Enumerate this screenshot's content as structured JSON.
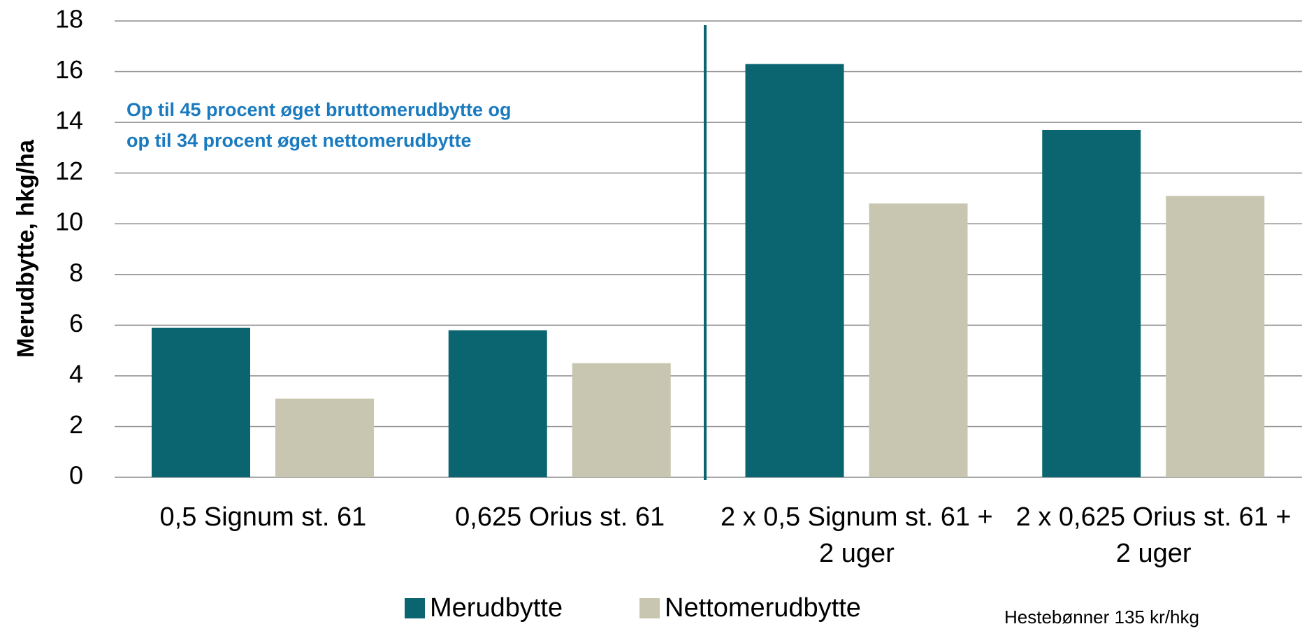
{
  "chart_data": {
    "type": "bar",
    "ylabel": "Merudbytte, hkg/ha",
    "categories": [
      "0,5 Signum st. 61",
      "0,625 Orius st. 61",
      "2 x 0,5 Signum st. 61 + 2 uger",
      "2 x 0,625 Orius st. 61 + 2 uger"
    ],
    "series": [
      {
        "name": "Merudbytte",
        "color": "#0b6571",
        "values": [
          5.9,
          5.8,
          16.3,
          13.7
        ]
      },
      {
        "name": "Nettomerudbytte",
        "color": "#c8c6b0",
        "values": [
          3.1,
          4.5,
          10.8,
          11.1
        ]
      }
    ],
    "ylim": [
      0,
      18
    ],
    "yticks": [
      0,
      2,
      4,
      6,
      8,
      10,
      12,
      14,
      16,
      18
    ],
    "grid": true,
    "annotations": [
      "Op til 45 procent øget bruttomerudbytte og",
      "op til 34 procent øget nettomerudbytte"
    ],
    "note": "Hestebønner 135 kr/hkg",
    "legend": "bottom"
  }
}
